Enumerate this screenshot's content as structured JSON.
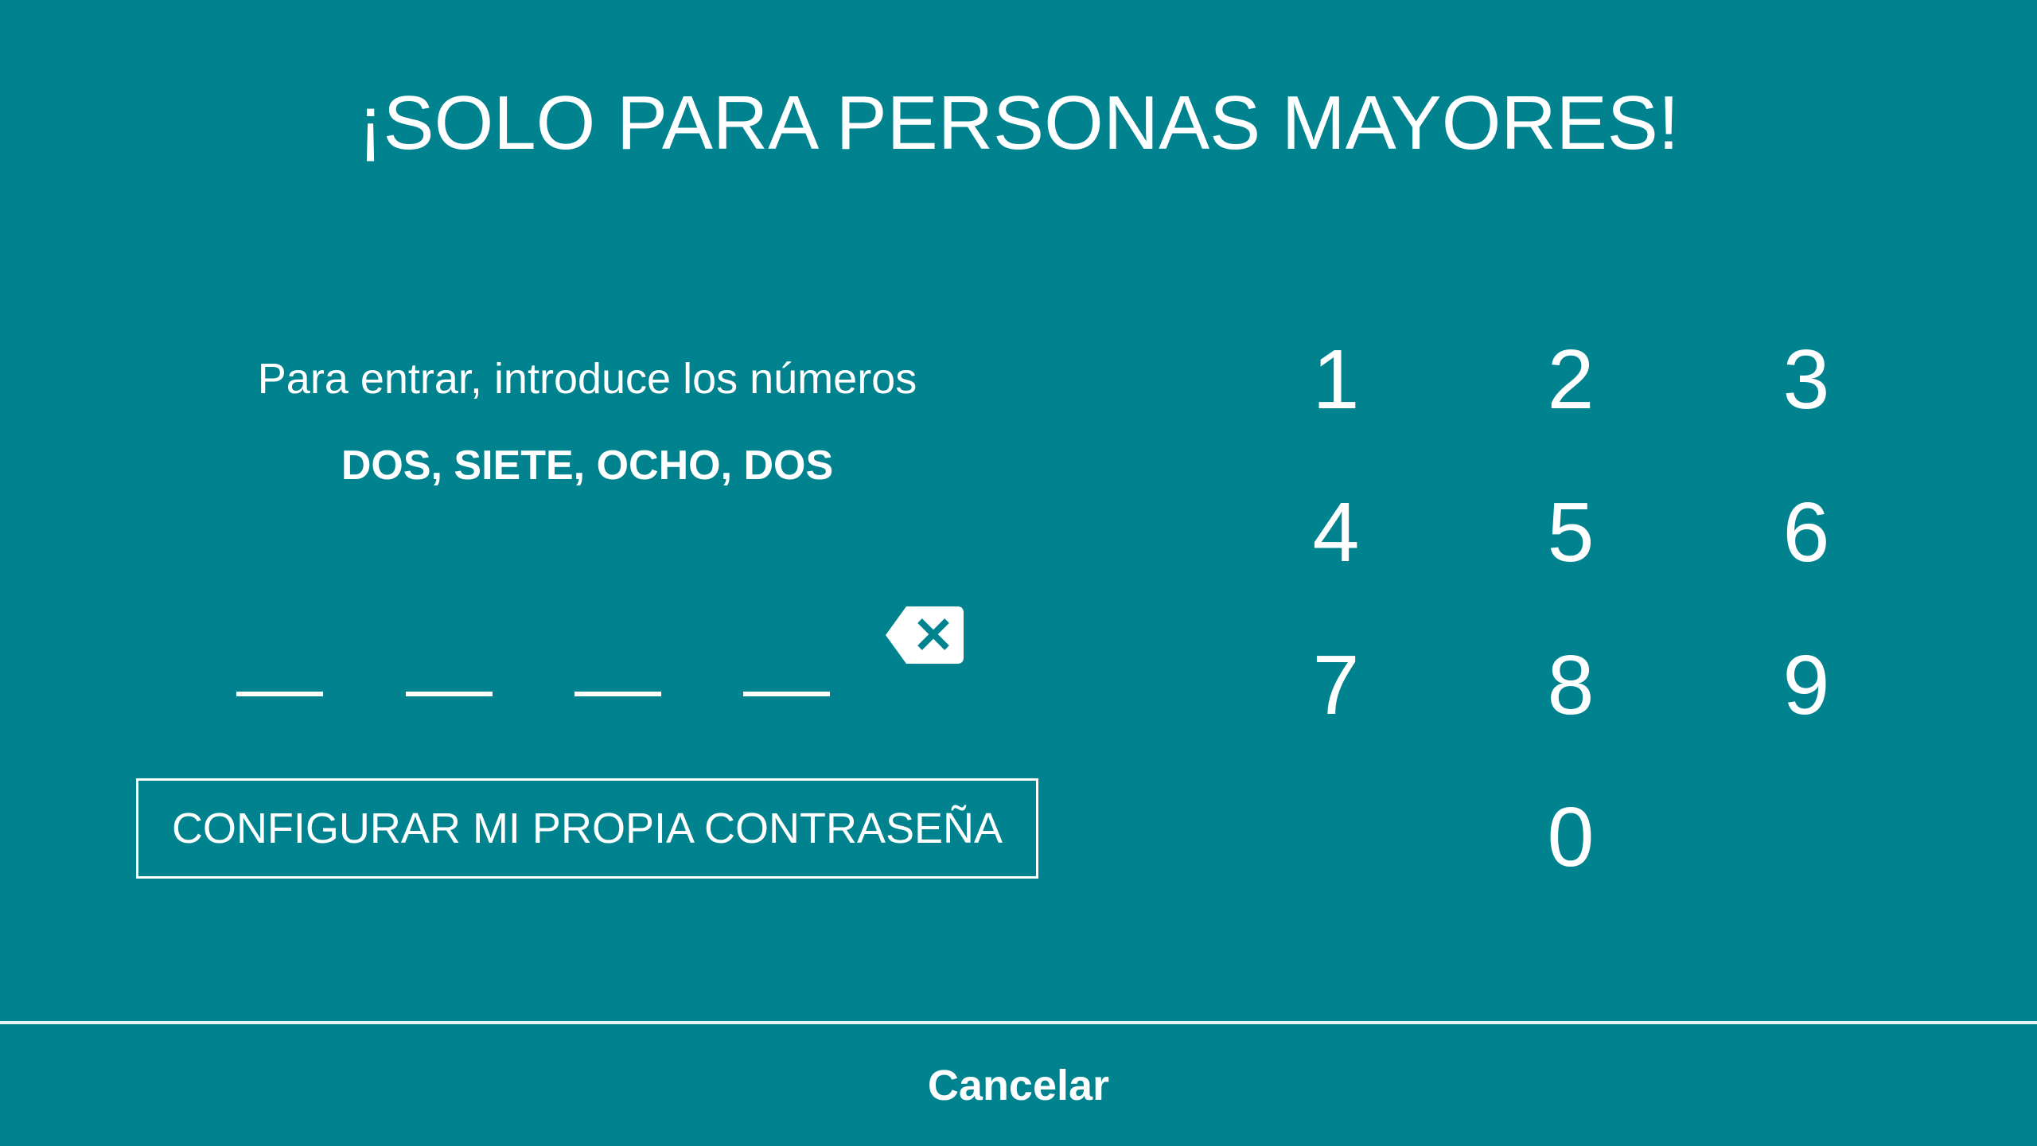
{
  "title": "¡SOLO PARA PERSONAS MAYORES!",
  "instruction": "Para entrar, introduce los números",
  "code_words": "DOS, SIETE, OCHO, DOS",
  "pin": {
    "length": 4,
    "entered": ""
  },
  "backspace_icon": "backspace-icon",
  "configure_button": "CONFIGURAR MI PROPIA CONTRASEÑA",
  "keypad": [
    "1",
    "2",
    "3",
    "4",
    "5",
    "6",
    "7",
    "8",
    "9",
    "0"
  ],
  "cancel": "Cancelar",
  "colors": {
    "background": "#00838F",
    "foreground": "#FFFFFF"
  }
}
